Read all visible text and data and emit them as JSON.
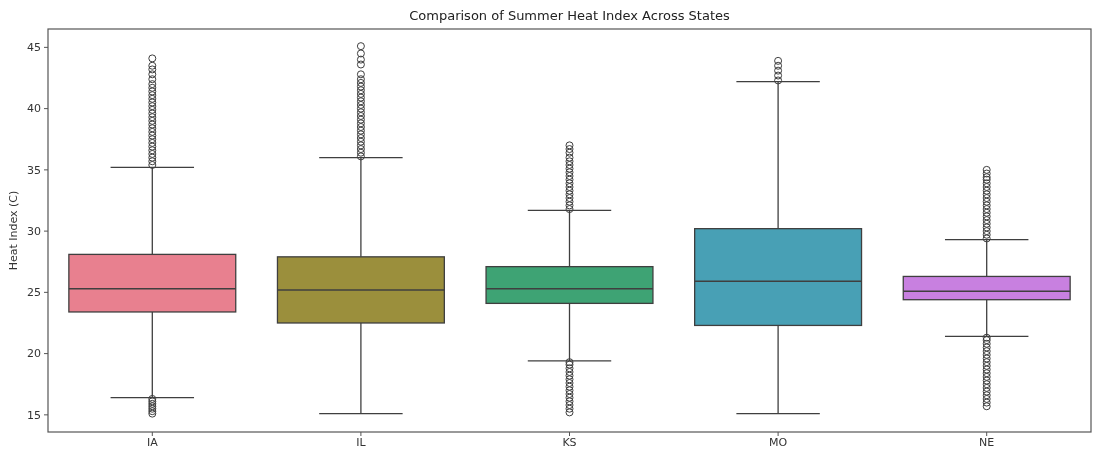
{
  "chart_data": {
    "type": "box",
    "title": "Comparison of Summer Heat Index Across States",
    "ylabel": "Heat Index (C)",
    "categories": [
      "IA",
      "IL",
      "KS",
      "MO",
      "NE"
    ],
    "colors": [
      "#e8808f",
      "#9b8f3c",
      "#3ea374",
      "#48a0b5",
      "#c880e0"
    ],
    "ylim": [
      13.6,
      46.5
    ],
    "yticks": [
      15,
      20,
      25,
      30,
      35,
      40,
      45
    ],
    "grid": false,
    "boxes": [
      {
        "low": 16.4,
        "q1": 23.4,
        "median": 25.3,
        "q3": 28.1,
        "high": 35.2,
        "outliers": [
          35.4,
          35.7,
          36.0,
          36.3,
          36.6,
          36.9,
          37.2,
          37.5,
          37.8,
          38.1,
          38.4,
          38.7,
          39.0,
          39.3,
          39.6,
          39.9,
          40.2,
          40.5,
          40.8,
          41.1,
          41.4,
          41.7,
          42.0,
          42.4,
          42.8,
          43.2,
          43.5,
          44.1,
          15.1,
          15.3,
          15.5,
          15.7,
          15.9,
          16.1,
          16.3
        ]
      },
      {
        "low": 15.1,
        "q1": 22.5,
        "median": 25.2,
        "q3": 27.9,
        "high": 36.0,
        "outliers": [
          36.1,
          36.4,
          36.7,
          37.0,
          37.3,
          37.6,
          37.9,
          38.2,
          38.5,
          38.8,
          39.1,
          39.4,
          39.7,
          40.0,
          40.3,
          40.6,
          40.9,
          41.2,
          41.5,
          41.8,
          42.1,
          42.4,
          42.8,
          43.6,
          44.0,
          44.5,
          45.1
        ]
      },
      {
        "low": 19.4,
        "q1": 24.1,
        "median": 25.3,
        "q3": 27.1,
        "high": 31.7,
        "outliers": [
          31.8,
          32.1,
          32.4,
          32.7,
          33.0,
          33.3,
          33.6,
          33.9,
          34.2,
          34.5,
          34.8,
          35.1,
          35.4,
          35.7,
          36.0,
          36.4,
          36.7,
          37.0,
          15.2,
          15.5,
          15.8,
          16.1,
          16.4,
          16.7,
          17.0,
          17.3,
          17.6,
          17.9,
          18.2,
          18.5,
          18.8,
          19.1,
          19.3
        ]
      },
      {
        "low": 15.1,
        "q1": 22.3,
        "median": 25.9,
        "q3": 30.2,
        "high": 42.2,
        "outliers": [
          42.3,
          42.7,
          43.1,
          43.5,
          43.9
        ]
      },
      {
        "low": 21.4,
        "q1": 24.4,
        "median": 25.1,
        "q3": 26.3,
        "high": 29.3,
        "outliers": [
          29.4,
          29.7,
          30.0,
          30.3,
          30.6,
          30.9,
          31.2,
          31.5,
          31.8,
          32.1,
          32.4,
          32.7,
          33.0,
          33.3,
          33.6,
          33.9,
          34.2,
          34.4,
          34.7,
          35.0,
          15.7,
          16.0,
          16.3,
          16.6,
          16.9,
          17.2,
          17.5,
          17.8,
          18.1,
          18.4,
          18.7,
          19.0,
          19.3,
          19.6,
          19.9,
          20.2,
          20.5,
          20.8,
          21.1,
          21.3
        ]
      }
    ]
  }
}
